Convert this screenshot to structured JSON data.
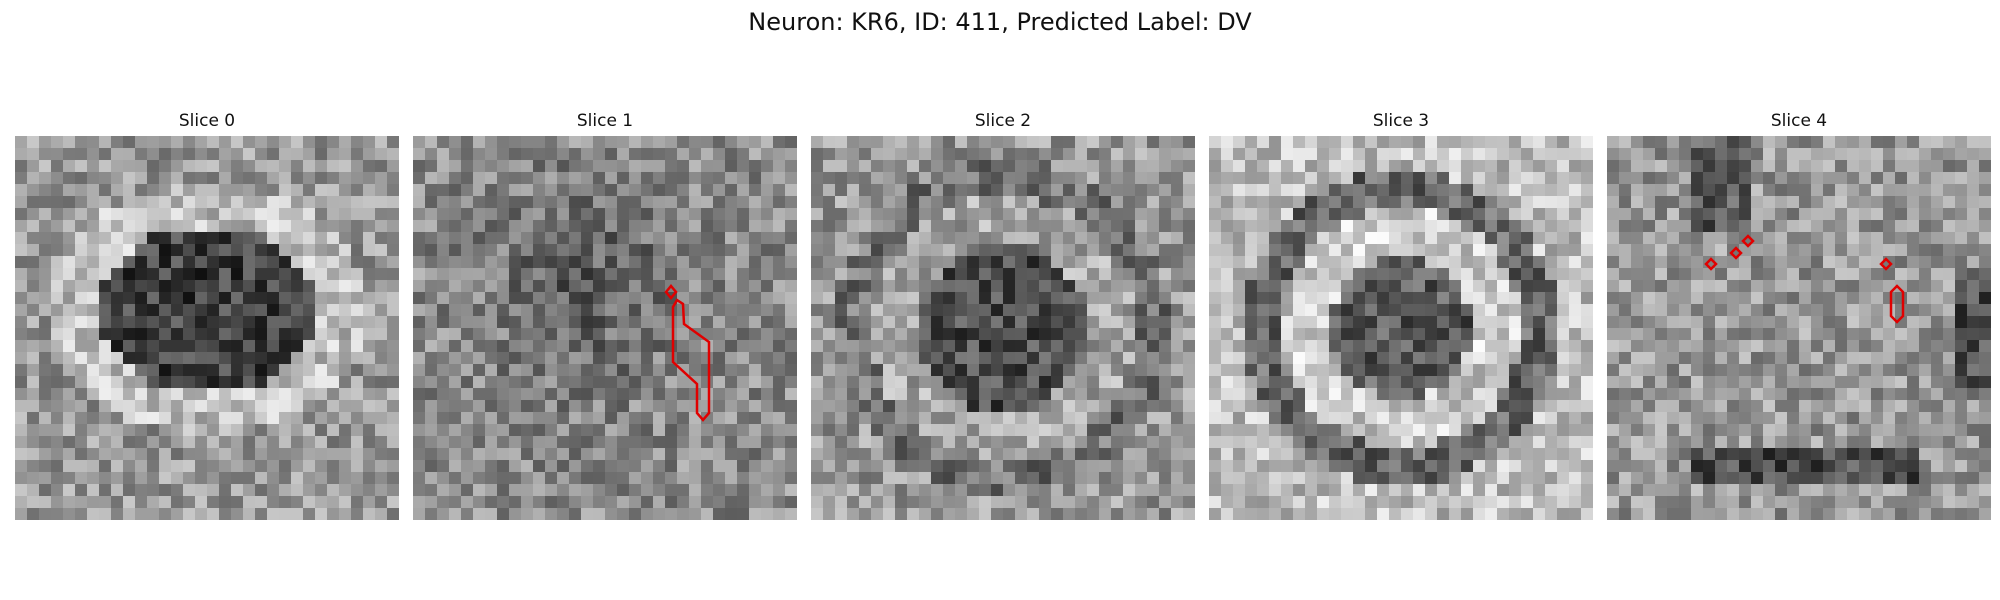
{
  "figure": {
    "title": "Neuron: KR6, ID: 411, Predicted Label: DV"
  },
  "panels": [
    {
      "title": "Slice 0",
      "pattern": "dark-blob"
    },
    {
      "title": "Slice 1",
      "pattern": "noisy"
    },
    {
      "title": "Slice 2",
      "pattern": "ring-center"
    },
    {
      "title": "Slice 3",
      "pattern": "ring"
    },
    {
      "title": "Slice 4",
      "pattern": "mixed"
    }
  ],
  "colors": {
    "contour": "#e00000"
  }
}
